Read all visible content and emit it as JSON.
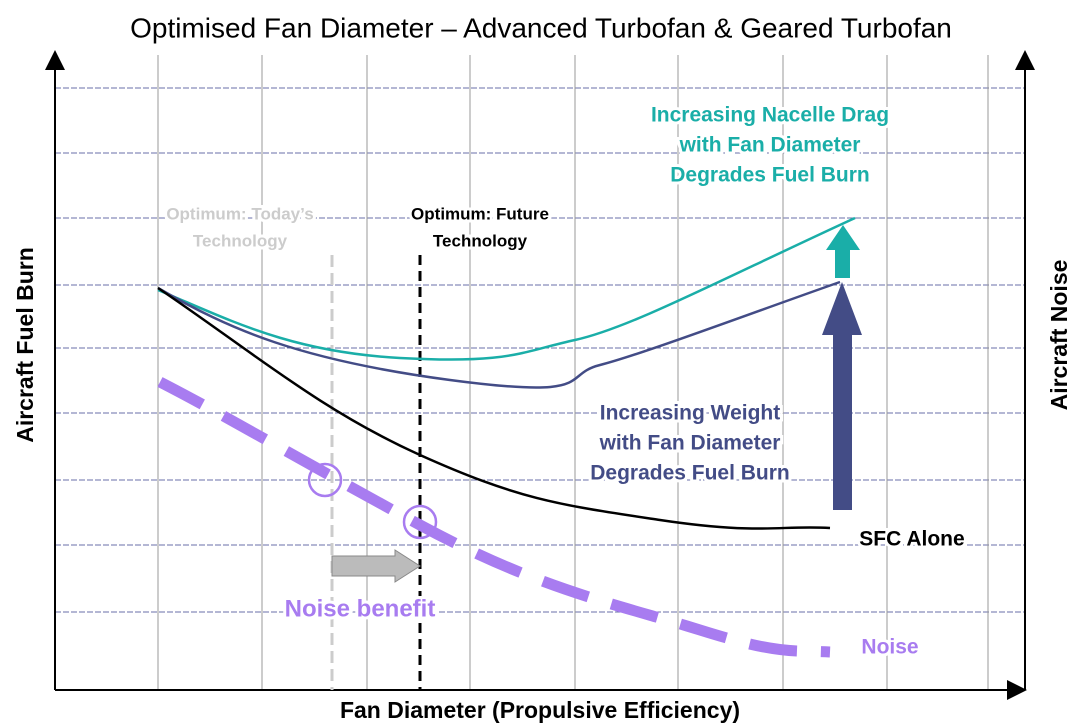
{
  "title": "Optimised Fan Diameter – Advanced Turbofan & Geared Turbofan",
  "axes": {
    "x_label": "Fan Diameter (Propulsive Efficiency)",
    "y_label": "Aircraft Fuel Burn",
    "y2_label": "Aircraft Noise"
  },
  "annotations": {
    "today": [
      "Optimum: Today’s",
      "Technology"
    ],
    "future": [
      "Optimum: Future",
      "Technology"
    ],
    "nacelle": [
      "Increasing Nacelle Drag",
      "with Fan Diameter",
      "Degrades Fuel Burn"
    ],
    "weight": [
      "Increasing Weight",
      "with Fan Diameter",
      "Degrades Fuel Burn"
    ],
    "sfc": "SFC Alone",
    "noise_benefit": "Noise benefit",
    "noise": "Noise"
  }
}
